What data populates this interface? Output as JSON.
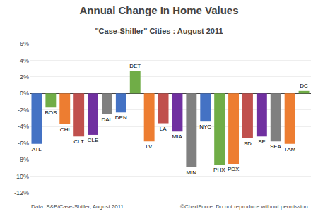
{
  "chart_data": {
    "type": "bar",
    "title": "Annual Change In Home Values",
    "subtitle": "\"Case-Shiller\" Cities : August 2011",
    "categories": [
      "ATL",
      "BOS",
      "CHI",
      "CLT",
      "CLE",
      "DAL",
      "DEN",
      "DET",
      "LV",
      "LA",
      "MIA",
      "MIN",
      "NYC",
      "PHX",
      "PDX",
      "SD",
      "SF",
      "SEA",
      "TAM",
      "DC"
    ],
    "values": [
      -6.1,
      -1.7,
      -3.7,
      -5.2,
      -5.0,
      -2.5,
      -2.3,
      2.7,
      -5.8,
      -3.6,
      -4.6,
      -8.9,
      -3.4,
      -8.6,
      -8.5,
      -5.4,
      -5.2,
      -5.8,
      -6.1,
      0.3
    ],
    "colors": [
      "#4472C4",
      "#70AD47",
      "#ED7D31",
      "#C0504D",
      "#7030A0",
      "#808080",
      "#4472C4",
      "#70AD47",
      "#ED7D31",
      "#C0504D",
      "#7030A0",
      "#808080",
      "#4472C4",
      "#70AD47",
      "#ED7D31",
      "#C0504D",
      "#7030A0",
      "#808080",
      "#ED7D31",
      "#70AD47"
    ],
    "ylim": [
      -12,
      6
    ],
    "yticks": [
      {
        "value": -12,
        "label": "-12%"
      },
      {
        "value": -10,
        "label": "-10%"
      },
      {
        "value": -8,
        "label": "-8%"
      },
      {
        "value": -6,
        "label": "-6%"
      },
      {
        "value": -4,
        "label": "-4%"
      },
      {
        "value": -2,
        "label": "-2%"
      },
      {
        "value": 0,
        "label": "0%"
      },
      {
        "value": 2,
        "label": "2%"
      },
      {
        "value": 4,
        "label": "4%"
      },
      {
        "value": 6,
        "label": "6%"
      }
    ],
    "grid": true,
    "tick_labels": "y",
    "annotations": [
      "Data: S&P/Case-Shiller, August 2011",
      "©ChartForce  Do not reproduce without permission."
    ]
  }
}
